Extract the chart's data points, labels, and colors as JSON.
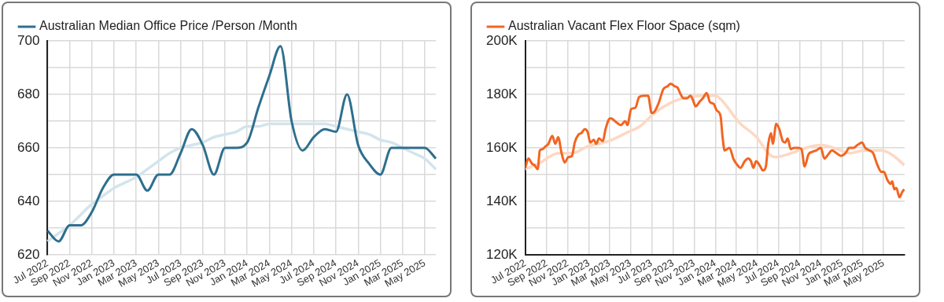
{
  "chart_data": [
    {
      "type": "line",
      "categories": [
        "Jul 2022",
        null,
        "Sep 2022",
        null,
        "Nov 2022",
        null,
        "Jan 2023",
        null,
        "Mar 2023",
        null,
        "May 2023",
        null,
        "Jul 2023",
        null,
        "Sep 2023",
        null,
        "Nov 2023",
        null,
        "Jan 2024",
        null,
        "Mar 2024",
        null,
        "May 2024",
        null,
        "Jul 2024",
        null,
        "Sep 2024",
        null,
        "Nov 2024",
        null,
        "Jan 2025",
        null,
        "Mar 2025",
        null,
        "May 2025",
        null
      ],
      "series": [
        {
          "name": "Australian Median Office Price /Person /Month",
          "color": "#2e6f8e",
          "values": [
            629,
            625,
            631,
            631,
            636,
            645,
            650,
            650,
            650,
            644,
            650,
            650,
            658,
            667,
            661,
            650,
            660,
            660,
            662,
            675,
            687,
            698,
            670,
            659,
            664,
            667,
            666,
            680,
            661,
            654,
            650,
            660,
            660,
            660,
            660,
            656
          ]
        },
        {
          "type": "line",
          "color": "#d3e4ec",
          "values": [
            625,
            628,
            631,
            635,
            639,
            642,
            645,
            647,
            649,
            652,
            655,
            658,
            660,
            661,
            662,
            664,
            665,
            666,
            668,
            668,
            669,
            669,
            669,
            669,
            669,
            669,
            668,
            667,
            666,
            665,
            663,
            662,
            660,
            658,
            656,
            652
          ]
        }
      ],
      "ylim": [
        620,
        700
      ],
      "yticks": [
        620,
        {
          "value": 630,
          "label": null
        },
        640,
        {
          "value": 650,
          "label": null
        },
        660,
        {
          "value": 670,
          "label": null
        },
        680,
        {
          "value": 690,
          "label": null
        },
        700
      ],
      "grid": true,
      "legend": "top left",
      "marker": "none",
      "line_style": "solid"
    },
    {
      "type": "line",
      "xlim": [
        "2022-07-01",
        "2025-07-01"
      ],
      "xticks": [
        {
          "value": "2022-07-01",
          "label": "Jul 2022"
        },
        {
          "value": "2022-09-01",
          "label": "Sep 2022"
        },
        {
          "value": "2022-11-01",
          "label": "Nov 2022"
        },
        {
          "value": "2023-01-01",
          "label": "Jan 2023"
        },
        {
          "value": "2023-03-01",
          "label": "Mar 2023"
        },
        {
          "value": "2023-05-01",
          "label": "May 2023"
        },
        {
          "value": "2023-07-01",
          "label": "Jul 2023"
        },
        {
          "value": "2023-09-01",
          "label": "Sep 2023"
        },
        {
          "value": "2023-11-01",
          "label": "Nov 2023"
        },
        {
          "value": "2024-01-01",
          "label": "Jan 2024"
        },
        {
          "value": "2024-03-01",
          "label": "Mar 2024"
        },
        {
          "value": "2024-05-01",
          "label": "May 2024"
        },
        {
          "value": "2024-07-01",
          "label": "Jul 2024"
        },
        {
          "value": "2024-09-01",
          "label": "Sep 2024"
        },
        {
          "value": "2024-11-01",
          "label": "Nov 2024"
        },
        {
          "value": "2025-01-01",
          "label": "Jan 2025"
        },
        {
          "value": "2025-03-01",
          "label": "Mar 2025"
        },
        {
          "value": "2025-05-01",
          "label": "May 2025"
        }
      ],
      "series": [
        {
          "name": "Australian Vacant Flex Floor Space (sqm)",
          "color": "#f26522",
          "x": [
            "2022-07-01",
            "2022-07-10",
            "2022-07-21",
            "2022-07-28",
            "2022-08-06",
            "2022-08-12",
            "2022-08-20",
            "2022-08-28",
            "2022-09-06",
            "2022-09-17",
            "2022-09-26",
            "2022-10-04",
            "2022-10-14",
            "2022-10-23",
            "2022-11-02",
            "2022-11-13",
            "2022-11-21",
            "2022-12-02",
            "2022-12-10",
            "2022-12-20",
            "2022-12-28",
            "2023-01-05",
            "2023-01-15",
            "2023-01-22",
            "2023-01-30",
            "2023-02-10",
            "2023-02-18",
            "2023-02-27",
            "2023-03-05",
            "2023-03-22",
            "2023-04-03",
            "2023-04-16",
            "2023-04-22",
            "2023-05-03",
            "2023-05-15",
            "2023-05-26",
            "2023-06-08",
            "2023-06-21",
            "2023-07-01",
            "2023-07-09",
            "2023-07-22",
            "2023-08-04",
            "2023-08-16",
            "2023-08-25",
            "2023-09-06",
            "2023-09-14",
            "2023-09-23",
            "2023-10-02",
            "2023-10-11",
            "2023-10-21",
            "2023-10-28",
            "2023-11-05",
            "2023-11-18",
            "2023-11-26",
            "2023-12-07",
            "2023-12-17",
            "2023-12-27",
            "2024-01-05",
            "2024-01-16",
            "2024-01-22",
            "2024-01-28",
            "2024-02-11",
            "2024-02-22",
            "2024-03-02",
            "2024-03-14",
            "2024-03-26",
            "2024-04-05",
            "2024-04-13",
            "2024-04-20",
            "2024-04-28",
            "2024-05-08",
            "2024-05-18",
            "2024-05-26",
            "2024-06-02",
            "2024-06-10",
            "2024-06-15",
            "2024-06-25",
            "2024-07-04",
            "2024-07-14",
            "2024-07-21",
            "2024-07-28",
            "2024-08-06",
            "2024-08-16",
            "2024-08-26",
            "2024-09-06",
            "2024-09-15",
            "2024-09-26",
            "2024-10-07",
            "2024-10-18",
            "2024-11-01",
            "2024-11-11",
            "2024-11-22",
            "2024-12-03",
            "2024-12-16",
            "2024-12-29",
            "2025-01-11",
            "2025-01-22",
            "2025-02-03",
            "2025-02-14",
            "2025-02-28",
            "2025-03-09",
            "2025-03-22",
            "2025-04-01",
            "2025-04-12",
            "2025-04-25",
            "2025-05-02",
            "2025-05-12",
            "2025-05-21",
            "2025-05-26",
            "2025-06-01",
            "2025-06-07",
            "2025-06-16",
            "2025-06-24",
            "2025-06-30"
          ],
          "values": [
            152500,
            156000,
            154000,
            153500,
            152000,
            159000,
            159500,
            160500,
            161500,
            164500,
            161500,
            164000,
            158000,
            154500,
            156500,
            157000,
            162000,
            165000,
            165500,
            167000,
            166000,
            162000,
            163000,
            161500,
            163500,
            162500,
            167000,
            170500,
            171000,
            169500,
            168500,
            170000,
            168500,
            174500,
            175000,
            179000,
            179500,
            179500,
            173000,
            173500,
            177000,
            182000,
            183000,
            184000,
            183000,
            182500,
            180000,
            178500,
            178500,
            179500,
            178000,
            175500,
            177500,
            178500,
            180500,
            177000,
            176500,
            174000,
            172000,
            164000,
            159000,
            160000,
            156000,
            154000,
            152500,
            155000,
            156000,
            155000,
            152500,
            155000,
            153500,
            151500,
            153000,
            161500,
            165500,
            161500,
            169000,
            167000,
            162500,
            162000,
            163500,
            159500,
            160000,
            160000,
            159500,
            153000,
            157500,
            158500,
            159000,
            160000,
            156000,
            157500,
            159000,
            158000,
            157000,
            158000,
            160000,
            160000,
            161000,
            162000,
            160000,
            159000,
            158000,
            154000,
            151000,
            151000,
            148000,
            146500,
            147500,
            144500,
            145000,
            141500,
            143500,
            144500
          ]
        },
        {
          "type": "line",
          "color": "#fdd8c3",
          "x": [
            "2022-07-01",
            "2022-08-07",
            "2022-10-06",
            "2022-11-13",
            "2022-12-28",
            "2023-02-27",
            "2023-04-25",
            "2023-05-28",
            "2023-07-09",
            "2023-08-20",
            "2023-10-11",
            "2023-11-30",
            "2024-01-01",
            "2024-01-18",
            "2024-03-10",
            "2024-04-29",
            "2024-06-02",
            "2024-06-22",
            "2024-08-07",
            "2024-09-19",
            "2024-11-01",
            "2024-12-19",
            "2025-01-23",
            "2025-03-05",
            "2025-04-25",
            "2025-05-30",
            "2025-06-30"
          ],
          "values": [
            152000,
            154000,
            158000,
            158000,
            160500,
            162500,
            166000,
            168000,
            173000,
            176500,
            179000,
            179500,
            179500,
            178000,
            169500,
            164000,
            158000,
            156500,
            158000,
            160000,
            161000,
            159500,
            158000,
            159000,
            159000,
            157000,
            153500
          ]
        }
      ],
      "ylim": [
        120000,
        200000
      ],
      "yticks": [
        {
          "value": 120000,
          "label": "120K"
        },
        {
          "value": 130000,
          "label": null
        },
        {
          "value": 140000,
          "label": "140K"
        },
        {
          "value": 150000,
          "label": null
        },
        {
          "value": 160000,
          "label": "160K"
        },
        {
          "value": 170000,
          "label": null
        },
        {
          "value": 180000,
          "label": "180K"
        },
        {
          "value": 190000,
          "label": null
        },
        {
          "value": 200000,
          "label": "200K"
        }
      ],
      "grid": true,
      "legend": "top left",
      "marker": "none",
      "line_style": "solid"
    }
  ]
}
